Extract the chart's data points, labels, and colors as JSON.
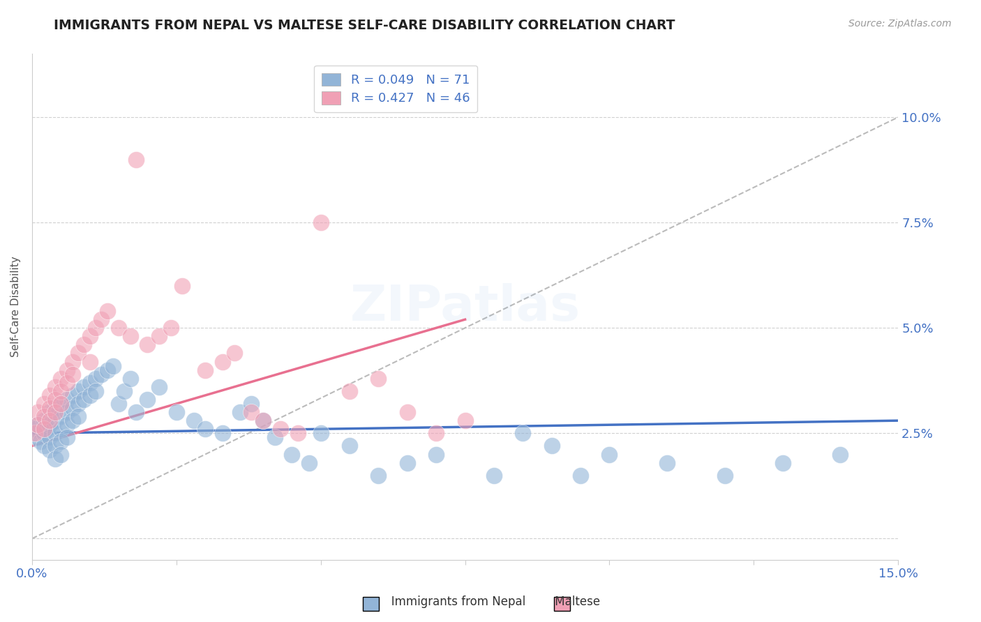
{
  "title": "IMMIGRANTS FROM NEPAL VS MALTESE SELF-CARE DISABILITY CORRELATION CHART",
  "source": "Source: ZipAtlas.com",
  "ylabel": "Self-Care Disability",
  "xlim": [
    0.0,
    0.15
  ],
  "ylim": [
    -0.005,
    0.115
  ],
  "xticks": [
    0.0,
    0.025,
    0.05,
    0.075,
    0.1,
    0.125,
    0.15
  ],
  "xticklabels": [
    "0.0%",
    "",
    "",
    "",
    "",
    "",
    "15.0%"
  ],
  "yticks": [
    0.0,
    0.025,
    0.05,
    0.075,
    0.1
  ],
  "yticklabels": [
    "",
    "2.5%",
    "5.0%",
    "7.5%",
    "10.0%"
  ],
  "legend_r1": "R = 0.049",
  "legend_n1": "N = 71",
  "legend_r2": "R = 0.427",
  "legend_n2": "N = 46",
  "blue_color": "#92b4d7",
  "pink_color": "#f0a0b5",
  "axis_label_color": "#4472c4",
  "grid_color": "#d0d0d0",
  "nepal_x": [
    0.0005,
    0.001,
    0.001,
    0.0015,
    0.002,
    0.002,
    0.002,
    0.0025,
    0.003,
    0.003,
    0.003,
    0.003,
    0.004,
    0.004,
    0.004,
    0.004,
    0.004,
    0.005,
    0.005,
    0.005,
    0.005,
    0.005,
    0.006,
    0.006,
    0.006,
    0.006,
    0.007,
    0.007,
    0.007,
    0.008,
    0.008,
    0.008,
    0.009,
    0.009,
    0.01,
    0.01,
    0.011,
    0.011,
    0.012,
    0.013,
    0.014,
    0.015,
    0.016,
    0.017,
    0.018,
    0.02,
    0.022,
    0.025,
    0.028,
    0.03,
    0.033,
    0.036,
    0.038,
    0.04,
    0.042,
    0.045,
    0.048,
    0.05,
    0.055,
    0.06,
    0.065,
    0.07,
    0.08,
    0.085,
    0.09,
    0.095,
    0.1,
    0.11,
    0.12,
    0.13,
    0.14
  ],
  "nepal_y": [
    0.026,
    0.024,
    0.027,
    0.023,
    0.025,
    0.028,
    0.022,
    0.026,
    0.03,
    0.027,
    0.024,
    0.021,
    0.031,
    0.028,
    0.025,
    0.022,
    0.019,
    0.032,
    0.029,
    0.026,
    0.023,
    0.02,
    0.033,
    0.03,
    0.027,
    0.024,
    0.034,
    0.031,
    0.028,
    0.035,
    0.032,
    0.029,
    0.036,
    0.033,
    0.037,
    0.034,
    0.038,
    0.035,
    0.039,
    0.04,
    0.041,
    0.032,
    0.035,
    0.038,
    0.03,
    0.033,
    0.036,
    0.03,
    0.028,
    0.026,
    0.025,
    0.03,
    0.032,
    0.028,
    0.024,
    0.02,
    0.018,
    0.025,
    0.022,
    0.015,
    0.018,
    0.02,
    0.015,
    0.025,
    0.022,
    0.015,
    0.02,
    0.018,
    0.015,
    0.018,
    0.02
  ],
  "maltese_x": [
    0.0005,
    0.001,
    0.001,
    0.002,
    0.002,
    0.002,
    0.003,
    0.003,
    0.003,
    0.004,
    0.004,
    0.004,
    0.005,
    0.005,
    0.005,
    0.006,
    0.006,
    0.007,
    0.007,
    0.008,
    0.009,
    0.01,
    0.01,
    0.011,
    0.012,
    0.013,
    0.015,
    0.017,
    0.018,
    0.02,
    0.022,
    0.024,
    0.026,
    0.03,
    0.033,
    0.035,
    0.038,
    0.04,
    0.043,
    0.046,
    0.05,
    0.055,
    0.06,
    0.065,
    0.07,
    0.075
  ],
  "maltese_y": [
    0.025,
    0.03,
    0.027,
    0.032,
    0.029,
    0.026,
    0.034,
    0.031,
    0.028,
    0.036,
    0.033,
    0.03,
    0.038,
    0.035,
    0.032,
    0.04,
    0.037,
    0.042,
    0.039,
    0.044,
    0.046,
    0.048,
    0.042,
    0.05,
    0.052,
    0.054,
    0.05,
    0.048,
    0.09,
    0.046,
    0.048,
    0.05,
    0.06,
    0.04,
    0.042,
    0.044,
    0.03,
    0.028,
    0.026,
    0.025,
    0.075,
    0.035,
    0.038,
    0.03,
    0.025,
    0.028
  ],
  "blue_trend_x": [
    0.0,
    0.15
  ],
  "blue_trend_y": [
    0.025,
    0.028
  ],
  "pink_trend_x": [
    0.0,
    0.075
  ],
  "pink_trend_y": [
    0.022,
    0.052
  ],
  "ref_line_x": [
    0.0,
    0.15
  ],
  "ref_line_y": [
    0.0,
    0.1
  ]
}
